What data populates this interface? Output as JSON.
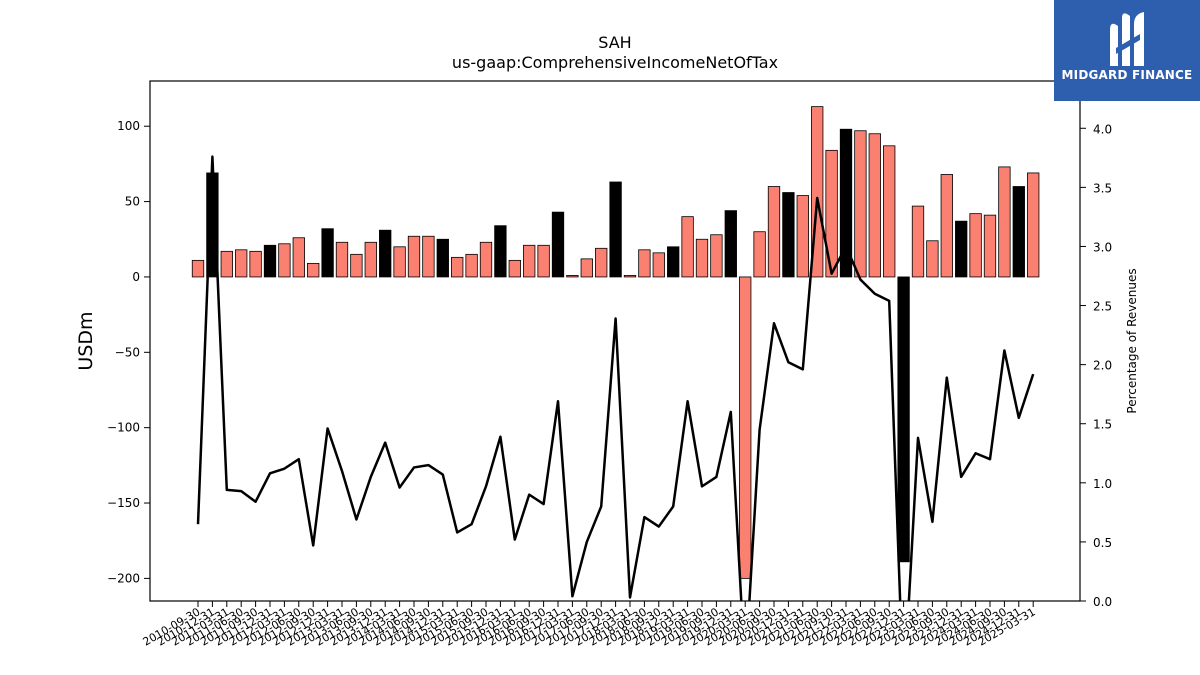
{
  "logo": {
    "text": "MIDGARD FINANCE"
  },
  "chart_data": {
    "type": "bar",
    "title": "SAH",
    "subtitle": "us-gaap:ComprehensiveIncomeNetOfTax",
    "ylabel": "USDm",
    "y2label": "Percentage of Revenues",
    "ylim": [
      -215,
      130
    ],
    "y2lim": [
      0.0,
      4.4
    ],
    "yticks": [
      -200,
      -150,
      -100,
      -50,
      0,
      50,
      100
    ],
    "y2ticks": [
      0.0,
      0.5,
      1.0,
      1.5,
      2.0,
      2.5,
      3.0,
      3.5,
      4.0
    ],
    "grid": false,
    "categories": [
      "2010-09-30",
      "2010-12-31",
      "2011-03-31",
      "2011-06-30",
      "2011-09-30",
      "2011-12-31",
      "2012-03-31",
      "2012-06-30",
      "2012-09-30",
      "2012-12-31",
      "2013-03-31",
      "2013-06-30",
      "2013-09-30",
      "2013-12-31",
      "2014-03-31",
      "2014-06-30",
      "2014-09-30",
      "2014-12-31",
      "2015-03-31",
      "2015-06-30",
      "2015-09-30",
      "2015-12-31",
      "2016-03-31",
      "2016-06-30",
      "2016-09-30",
      "2016-12-31",
      "2017-03-31",
      "2017-06-30",
      "2017-09-30",
      "2017-12-31",
      "2018-03-31",
      "2018-06-30",
      "2018-09-30",
      "2018-12-31",
      "2019-03-31",
      "2019-06-30",
      "2019-09-30",
      "2019-12-31",
      "2020-03-31",
      "2020-06-30",
      "2020-09-30",
      "2020-12-31",
      "2021-03-31",
      "2021-06-30",
      "2021-09-30",
      "2021-12-31",
      "2022-03-31",
      "2022-06-30",
      "2022-09-30",
      "2022-12-31",
      "2023-03-31",
      "2023-06-30",
      "2023-09-30",
      "2023-12-31",
      "2024-03-31",
      "2024-06-30",
      "2024-09-30",
      "2024-12-31",
      "2025-03-31"
    ],
    "series": [
      {
        "kind": "bar",
        "axis": "left",
        "values": [
          11,
          69,
          17,
          18,
          17,
          21,
          22,
          26,
          9,
          32,
          23,
          15,
          23,
          31,
          20,
          27,
          27,
          25,
          13,
          15,
          23,
          34,
          11,
          21,
          21,
          43,
          1,
          12,
          19,
          63,
          1,
          18,
          16,
          20,
          40,
          25,
          28,
          44,
          -200,
          30,
          60,
          56,
          54,
          113,
          84,
          98,
          97,
          95,
          87,
          -189,
          47,
          24,
          68,
          37,
          42,
          41,
          73,
          60,
          69
        ],
        "black_indices": [
          1,
          5,
          9,
          13,
          17,
          21,
          25,
          29,
          33,
          37,
          41,
          45,
          49,
          53,
          57
        ]
      },
      {
        "kind": "line",
        "axis": "right",
        "values": [
          0.65,
          3.76,
          0.94,
          0.93,
          0.84,
          1.08,
          1.12,
          1.2,
          0.47,
          1.46,
          1.1,
          0.69,
          1.05,
          1.34,
          0.96,
          1.13,
          1.15,
          1.07,
          0.58,
          0.65,
          0.97,
          1.39,
          0.52,
          0.9,
          0.82,
          1.69,
          0.04,
          0.5,
          0.8,
          2.39,
          0.03,
          0.71,
          0.63,
          0.8,
          1.69,
          0.97,
          1.05,
          1.6,
          -0.6,
          1.45,
          2.35,
          2.02,
          1.96,
          3.41,
          2.77,
          3.0,
          2.72,
          2.6,
          2.54,
          -0.8,
          1.38,
          0.67,
          1.89,
          1.05,
          1.25,
          1.2,
          2.12,
          1.55,
          1.92
        ]
      }
    ]
  }
}
